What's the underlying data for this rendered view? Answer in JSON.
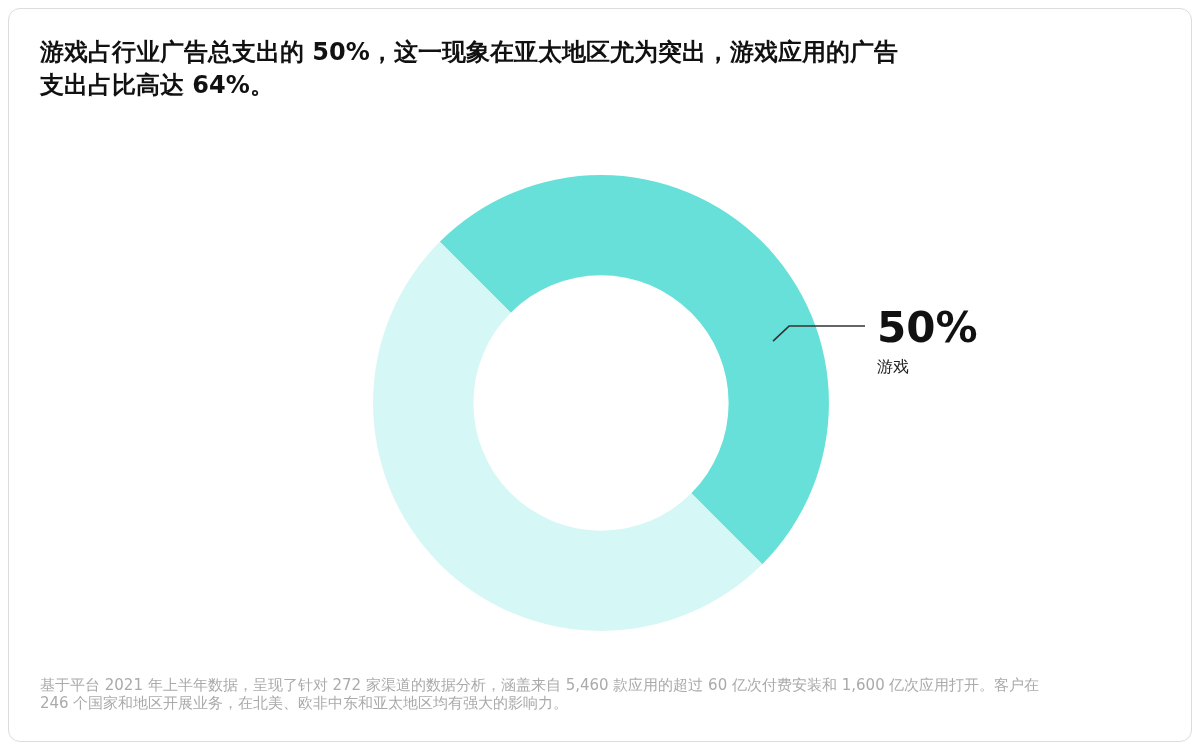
{
  "chart_data": {
    "type": "donut",
    "title": "游戏占行业广告总支出的 50%，这一现象在亚太地区尤为突出，游戏应用的广告支出占比高达 64%。",
    "categories": [
      "游戏",
      null
    ],
    "values": [
      50,
      50
    ],
    "colors": [
      "#66e0d8",
      "#d5f7f5"
    ],
    "value_labels": [
      "50%",
      null
    ],
    "annotations": [
      "基于平台 2021 年上半年数据，呈现了针对 272 家渠道的数据分析，涵盖来自 5,460 款应用的超过 60 亿次付费安装和 1,600 亿次应用打开。客户在 246 个国家和地区开展业务，在北美、欧非中东和亚太地区均有强大的影响力。"
    ]
  }
}
